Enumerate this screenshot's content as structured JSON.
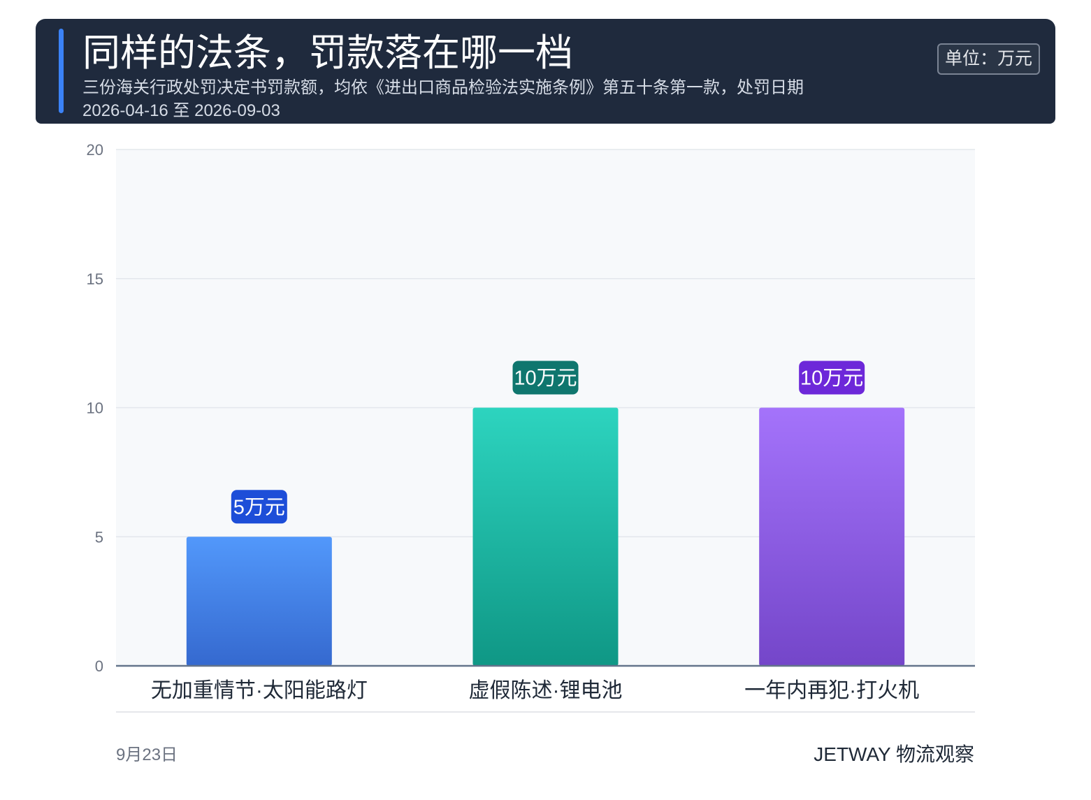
{
  "header": {
    "title": "同样的法条，罚款落在哪一档",
    "subtitle": "三份海关行政处罚决定书罚款额，均依《进出口商品检验法实施条例》第五十条第一款，处罚日期 2026-04-16 至 2026-09-03",
    "unit": "单位：万元",
    "accent_color": "#3b82f6",
    "background_color": "#1f2a3d"
  },
  "chart_data": {
    "type": "bar",
    "categories": [
      "无加重情节·太阳能路灯",
      "虚假陈述·锂电池",
      "一年内再犯·打火机"
    ],
    "values": [
      5,
      10,
      10
    ],
    "value_labels": [
      "5万元",
      "10万元",
      "10万元"
    ],
    "ylim": [
      0,
      20
    ],
    "yticks": [
      "0",
      "5",
      "10",
      "15",
      "20"
    ],
    "grid": true,
    "bar_colors": [
      {
        "top": "#5298fb",
        "bottom": "#3569cf",
        "badge": "#1d4ed8"
      },
      {
        "top": "#2dd4bf",
        "bottom": "#0f9785",
        "badge": "#0f766e"
      },
      {
        "top": "#a473fb",
        "bottom": "#7446c9",
        "badge": "#6d28d9"
      }
    ]
  },
  "footer": {
    "date": "9月23日",
    "brand": "JETWAY 物流观察"
  }
}
